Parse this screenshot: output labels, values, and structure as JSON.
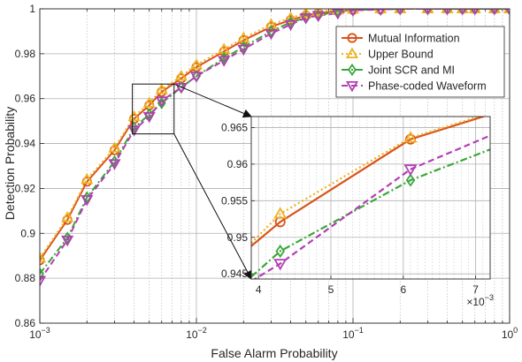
{
  "chart_data": [
    {
      "type": "line",
      "xlabel": "False Alarm Probability",
      "ylabel": "Detection Probability",
      "xscale": "log",
      "xlim": [
        0.001,
        1
      ],
      "ylim": [
        0.86,
        1.0
      ],
      "grid": true,
      "legend_position": "top-right",
      "x_tick_labels": [
        "10^-3",
        "10^-2",
        "10^-1",
        "10^0"
      ],
      "y_tick_labels": [
        "0.86",
        "0.88",
        "0.9",
        "0.92",
        "0.94",
        "0.96",
        "0.98",
        "1"
      ],
      "x": [
        0.001,
        0.0015,
        0.002,
        0.003,
        0.004,
        0.005,
        0.006,
        0.008,
        0.01,
        0.015,
        0.02,
        0.03,
        0.04,
        0.05,
        0.06,
        0.08,
        0.1,
        0.15,
        0.2,
        0.3,
        0.4,
        0.5,
        0.6,
        0.8,
        1.0
      ],
      "series": [
        {
          "name": "Mutual Information",
          "color": "#d95319",
          "line_style": "solid",
          "marker": "circle",
          "values": [
            0.888,
            0.906,
            0.923,
            0.937,
            0.951,
            0.957,
            0.963,
            0.969,
            0.974,
            0.981,
            0.986,
            0.992,
            0.995,
            0.997,
            0.998,
            0.999,
            0.9995,
            0.9998,
            1.0,
            1.0,
            1.0,
            1.0,
            1.0,
            1.0,
            1.0
          ]
        },
        {
          "name": "Upper Bound",
          "color": "#edb120",
          "line_style": "dotted",
          "marker": "triangle-up",
          "values": [
            0.889,
            0.907,
            0.924,
            0.938,
            0.952,
            0.958,
            0.964,
            0.97,
            0.975,
            0.982,
            0.987,
            0.993,
            0.996,
            0.998,
            0.999,
            0.9995,
            0.9998,
            1.0,
            1.0,
            1.0,
            1.0,
            1.0,
            1.0,
            1.0,
            1.0
          ]
        },
        {
          "name": "Joint SCR and MI",
          "color": "#3aa63a",
          "line_style": "dashdot",
          "marker": "diamond",
          "values": [
            0.882,
            0.898,
            0.916,
            0.932,
            0.947,
            0.953,
            0.958,
            0.965,
            0.97,
            0.978,
            0.983,
            0.99,
            0.994,
            0.996,
            0.997,
            0.999,
            0.9995,
            0.9998,
            1.0,
            1.0,
            1.0,
            1.0,
            1.0,
            1.0,
            1.0
          ]
        },
        {
          "name": "Phase-coded Waveform",
          "color": "#b33eb3",
          "line_style": "dashed",
          "marker": "triangle-down",
          "values": [
            0.879,
            0.897,
            0.915,
            0.931,
            0.946,
            0.952,
            0.959,
            0.965,
            0.97,
            0.977,
            0.982,
            0.989,
            0.993,
            0.996,
            0.997,
            0.998,
            0.9993,
            0.9997,
            1.0,
            1.0,
            1.0,
            1.0,
            1.0,
            1.0,
            1.0
          ]
        }
      ]
    },
    {
      "type": "line",
      "inset": true,
      "xlim": [
        3.9,
        7.2
      ],
      "ylim": [
        0.9443,
        0.9665
      ],
      "x_multiplier_label": "×10^-3",
      "x_tick_labels": [
        "4",
        "5",
        "6",
        "7"
      ],
      "y_tick_labels": [
        "0.945",
        "0.95",
        "0.955",
        "0.96",
        "0.965"
      ],
      "series": [
        {
          "name": "Mutual Information",
          "x": [
            3.9,
            4.3,
            6.1,
            7.2
          ],
          "values": [
            0.9488,
            0.9521,
            0.9634,
            0.9668
          ],
          "marker_x": [
            4.3,
            6.1
          ]
        },
        {
          "name": "Upper Bound",
          "x": [
            3.9,
            4.3,
            6.1,
            7.2
          ],
          "values": [
            0.9492,
            0.9532,
            0.9636,
            0.967
          ],
          "marker_x": [
            4.3,
            6.1
          ]
        },
        {
          "name": "Joint SCR and MI",
          "x": [
            3.9,
            4.3,
            6.1,
            7.2
          ],
          "values": [
            0.9446,
            0.9481,
            0.9578,
            0.962
          ],
          "marker_x": [
            4.3,
            6.1
          ]
        },
        {
          "name": "Phase-coded Waveform",
          "x": [
            3.9,
            4.3,
            6.1,
            7.2
          ],
          "values": [
            0.944,
            0.9464,
            0.9593,
            0.9639
          ],
          "marker_x": [
            4.3,
            6.1
          ]
        }
      ]
    }
  ]
}
